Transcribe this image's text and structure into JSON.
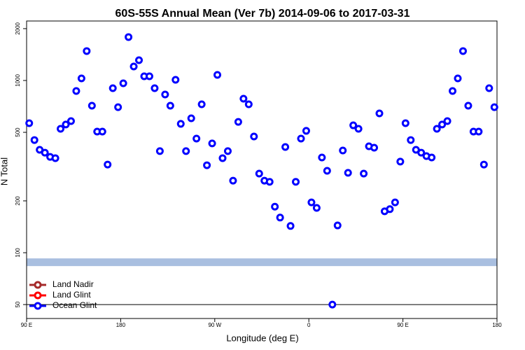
{
  "chart_data": {
    "type": "scatter",
    "title": "60S-55S Annual Mean (Ver 7b)   2014-09-06 to 2017-03-31",
    "xlabel": "Longitude (deg E)",
    "ylabel": "N Total",
    "log_y": true,
    "grid": false,
    "legend": "lower left",
    "xlim": [
      90,
      540
    ],
    "ylim": [
      41.5,
      2215
    ],
    "xticks": [
      {
        "value": 90,
        "label": "90 E"
      },
      180,
      {
        "value": 270,
        "label": "90 W"
      },
      {
        "value": 360,
        "label": "0"
      },
      {
        "value": 450,
        "label": "90 E"
      },
      {
        "value": 540,
        "label": "180"
      }
    ],
    "yticks": [
      50,
      100,
      200,
      500,
      1000,
      2000
    ],
    "band": {
      "value": 88,
      "color": "#a9bfe0"
    },
    "hline": {
      "value": 50,
      "color": "#000000"
    },
    "x": [
      92.5,
      97.5,
      102.5,
      107.5,
      112.5,
      117.5,
      122.5,
      127.5,
      132.5,
      137.5,
      142.5,
      147.5,
      152.5,
      157.5,
      162.5,
      167.5,
      172.5,
      177.5,
      182.5,
      187.5,
      192.5,
      197.5,
      202.5,
      207.5,
      212.5,
      217.5,
      222.5,
      227.5,
      232.5,
      237.5,
      242.5,
      247.5,
      252.5,
      257.5,
      262.5,
      267.5,
      272.5,
      277.5,
      282.5,
      287.5,
      292.5,
      297.5,
      302.5,
      307.5,
      312.5,
      317.5,
      322.5,
      327.5,
      332.5,
      337.5,
      342.5,
      347.5,
      352.5,
      357.5,
      362.5,
      367.5,
      372.5,
      377.5,
      382.5,
      387.5,
      392.5,
      397.5,
      402.5,
      407.5,
      412.5,
      417.5,
      422.5,
      427.5,
      432.5,
      437.5,
      442.5,
      447.5,
      452.5,
      457.5,
      462.5,
      467.5,
      472.5,
      477.5,
      482.5,
      487.5,
      492.5,
      497.5,
      502.5,
      507.5,
      512.5,
      517.5,
      522.5,
      527.5,
      532.5,
      537.5
    ],
    "series": [
      {
        "name": "Land Nadir",
        "color": "#a52a2a",
        "values": [
          null,
          null,
          null,
          null,
          null,
          null,
          null,
          null,
          null,
          null,
          null,
          null,
          null,
          null,
          null,
          null,
          null,
          null,
          null,
          null,
          null,
          null,
          null,
          null,
          null,
          null,
          null,
          null,
          null,
          null,
          null,
          null,
          null,
          null,
          null,
          null,
          null,
          null,
          null,
          null,
          null,
          null,
          null,
          null,
          null,
          null,
          null,
          null,
          null,
          null,
          null,
          null,
          null,
          null,
          null,
          null,
          null,
          null,
          null,
          null,
          null,
          null,
          null,
          null,
          null,
          null,
          null,
          null,
          null,
          null,
          null,
          null,
          null,
          null,
          null,
          null,
          null,
          null,
          null,
          null,
          null,
          null,
          null,
          null,
          null,
          null,
          null,
          null,
          null,
          null
        ]
      },
      {
        "name": "Land Glint",
        "color": "#ff0000",
        "values": [
          null,
          null,
          null,
          null,
          null,
          null,
          null,
          null,
          null,
          null,
          null,
          null,
          null,
          null,
          null,
          null,
          null,
          null,
          null,
          null,
          null,
          null,
          null,
          null,
          null,
          null,
          null,
          null,
          null,
          null,
          null,
          null,
          null,
          null,
          null,
          null,
          null,
          null,
          null,
          null,
          null,
          null,
          null,
          null,
          null,
          null,
          null,
          null,
          null,
          null,
          null,
          null,
          null,
          null,
          null,
          null,
          null,
          null,
          null,
          null,
          null,
          null,
          null,
          null,
          null,
          null,
          null,
          null,
          null,
          null,
          null,
          null,
          null,
          null,
          null,
          null,
          null,
          null,
          null,
          null,
          null,
          null,
          null,
          null,
          null,
          null,
          null,
          null,
          null,
          null
        ]
      },
      {
        "name": "Ocean Glint",
        "color": "#0000ff",
        "values": [
          565,
          451,
          396,
          381,
          360,
          354,
          524,
          555,
          581,
          869,
          1028,
          1482,
          714,
          505,
          505,
          325,
          902,
          700,
          963,
          1787,
          1206,
          1312,
          1058,
          1058,
          902,
          389,
          829,
          714,
          1009,
          560,
          389,
          603,
          460,
          727,
          322,
          431,
          1078,
          354,
          389,
          262,
          575,
          784,
          727,
          473,
          288,
          262,
          258,
          185,
          160,
          411,
          143,
          258,
          460,
          510,
          196,
          182,
          357,
          299,
          50,
          144,
          392,
          291,
          549,
          524,
          288,
          415,
          407,
          644,
          174,
          179,
          196,
          338,
          565,
          451,
          396,
          381,
          364,
          357,
          524,
          555,
          581,
          869,
          1028,
          1482,
          714,
          505,
          505,
          325,
          902,
          700
        ]
      }
    ]
  }
}
